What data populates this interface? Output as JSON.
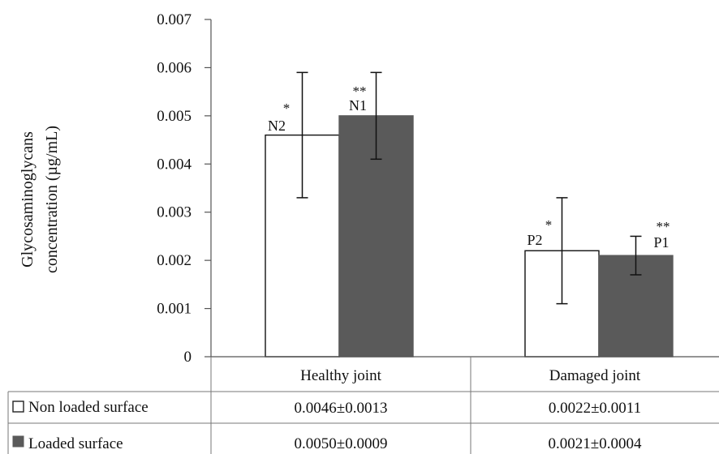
{
  "chart_data": {
    "type": "bar",
    "ylabel_lines": [
      "Glycosaminoglycans",
      "concentration (µg/mL)"
    ],
    "ylim": [
      0,
      0.007
    ],
    "yticks": [
      "0",
      "0.001",
      "0.002",
      "0.003",
      "0.004",
      "0.005",
      "0.006",
      "0.007"
    ],
    "grid": false,
    "categories": [
      "Healthy joint",
      "Damaged joint"
    ],
    "series": [
      {
        "name": "Non loaded surface",
        "color": "#ffffff",
        "values": [
          0.0046,
          0.0022
        ],
        "errors": [
          0.0013,
          0.0011
        ],
        "bar_labels": [
          "N2",
          "P2"
        ],
        "significance": [
          "*",
          "*"
        ],
        "table_values": [
          "0.0046±0.0013",
          "0.0022±0.0011"
        ]
      },
      {
        "name": "Loaded surface",
        "color": "#5a5a5a",
        "values": [
          0.005,
          0.0021
        ],
        "errors": [
          0.0009,
          0.0004
        ],
        "bar_labels": [
          "N1",
          "P1"
        ],
        "significance": [
          "**",
          "**"
        ],
        "table_values": [
          "0.0050±0.0009",
          "0.0021±0.0004"
        ]
      }
    ]
  }
}
